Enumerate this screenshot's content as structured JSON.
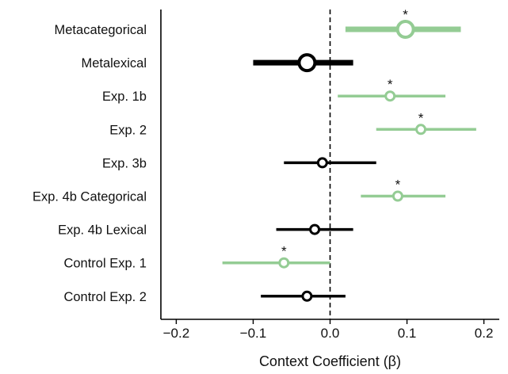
{
  "chart_data": {
    "type": "forest",
    "xlabel": "Context Coefficient (β)",
    "xlim": [
      -0.22,
      0.22
    ],
    "xticks": [
      -0.2,
      -0.1,
      0.0,
      0.1,
      0.2
    ],
    "xtick_labels": [
      "−0.2",
      "−0.1",
      "0.0",
      "0.1",
      "0.2"
    ],
    "reference_line": 0,
    "colors": {
      "significant": "#94cc94",
      "nonsignificant": "#000000"
    },
    "series": [
      {
        "name": "Metacategorical",
        "estimate": 0.098,
        "ci": [
          0.02,
          0.17
        ],
        "significant": true,
        "emphasis": "large"
      },
      {
        "name": "Metalexical",
        "estimate": -0.03,
        "ci": [
          -0.1,
          0.03
        ],
        "significant": false,
        "emphasis": "large"
      },
      {
        "name": "Exp. 1b",
        "estimate": 0.078,
        "ci": [
          0.01,
          0.15
        ],
        "significant": true,
        "emphasis": "normal"
      },
      {
        "name": "Exp. 2",
        "estimate": 0.118,
        "ci": [
          0.06,
          0.19
        ],
        "significant": true,
        "emphasis": "normal"
      },
      {
        "name": "Exp. 3b",
        "estimate": -0.01,
        "ci": [
          -0.06,
          0.06
        ],
        "significant": false,
        "emphasis": "normal"
      },
      {
        "name": "Exp. 4b Categorical",
        "estimate": 0.088,
        "ci": [
          0.04,
          0.15
        ],
        "significant": true,
        "emphasis": "normal"
      },
      {
        "name": "Exp. 4b Lexical",
        "estimate": -0.02,
        "ci": [
          -0.07,
          0.03
        ],
        "significant": false,
        "emphasis": "normal"
      },
      {
        "name": "Control Exp. 1",
        "estimate": -0.06,
        "ci": [
          -0.14,
          0.0
        ],
        "significant": true,
        "emphasis": "normal"
      },
      {
        "name": "Control Exp. 2",
        "estimate": -0.03,
        "ci": [
          -0.09,
          0.02
        ],
        "significant": false,
        "emphasis": "normal"
      }
    ],
    "significance_marker": "*"
  }
}
